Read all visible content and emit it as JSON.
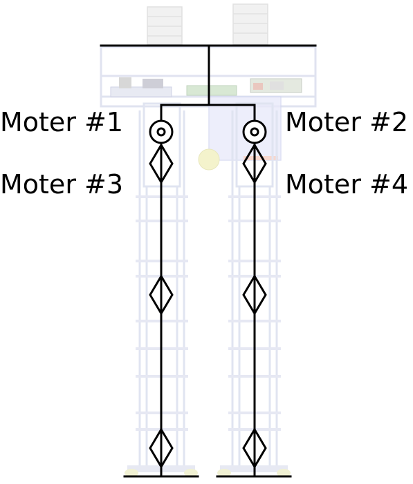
{
  "labels": {
    "motor1": "Moter #1",
    "motor2": "Moter #2",
    "motor3": "Moter #3",
    "motor4": "Moter #4"
  },
  "joints": {
    "left_leg": [
      "revolute",
      "prismatic",
      "prismatic",
      "prismatic"
    ],
    "right_leg": [
      "revolute",
      "prismatic",
      "prismatic",
      "prismatic"
    ]
  },
  "colors": {
    "kinematic_lines": "#000000",
    "background_render": "#c8cfe6",
    "joint_fill": "#ffffff",
    "com_marker": "#e9eaa6"
  }
}
